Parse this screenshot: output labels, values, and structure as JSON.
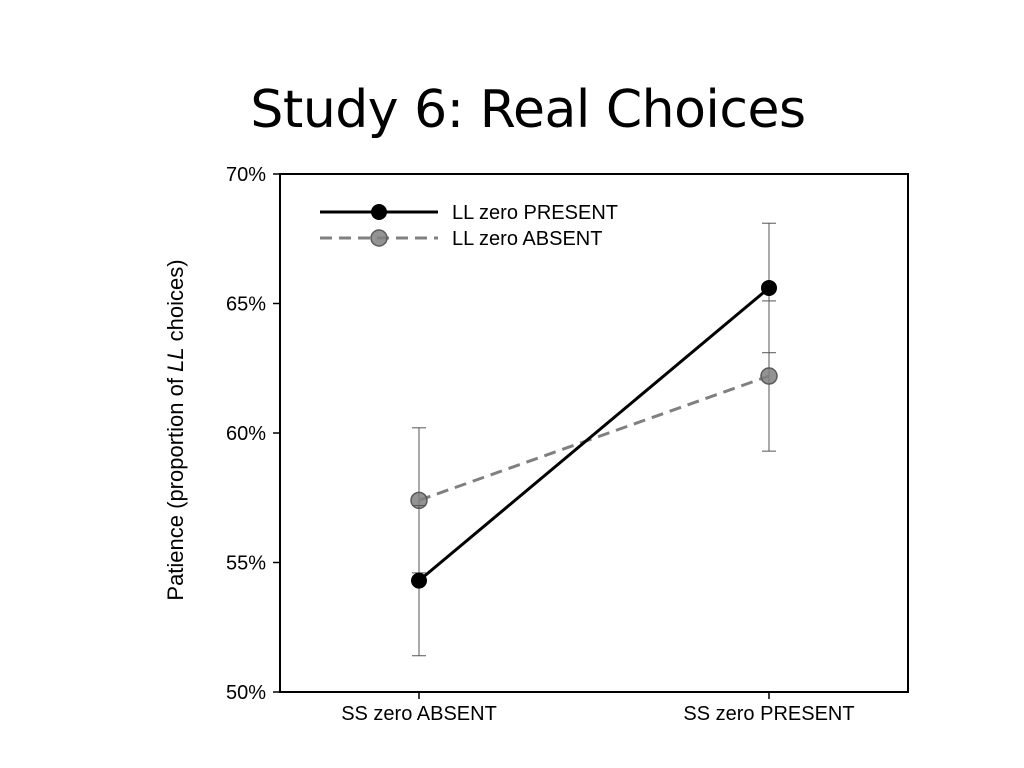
{
  "slide": {
    "title": "Study 6: Real Choices"
  },
  "chart_data": {
    "type": "line",
    "title": "Study 6: Real Choices",
    "xlabel": "",
    "ylabel_parts": [
      "Patience (proportion of ",
      "LL",
      " choices)"
    ],
    "categories": [
      "SS zero ABSENT",
      "SS zero PRESENT"
    ],
    "ylim": [
      50,
      70
    ],
    "yticks": [
      50,
      55,
      60,
      65,
      70
    ],
    "ytick_labels": [
      "50%",
      "55%",
      "60%",
      "65%",
      "70%"
    ],
    "grid": false,
    "legend_position": "top-left",
    "series": [
      {
        "name": "LL zero PRESENT",
        "values": [
          54.3,
          65.6
        ],
        "error_low": [
          51.4,
          63.1
        ],
        "error_high": [
          57.2,
          68.1
        ],
        "color": "#000000",
        "style": "solid"
      },
      {
        "name": "LL zero ABSENT",
        "values": [
          57.4,
          62.2
        ],
        "error_low": [
          54.6,
          59.3
        ],
        "error_high": [
          60.2,
          65.1
        ],
        "color": "#808080",
        "style": "dashed"
      }
    ]
  }
}
